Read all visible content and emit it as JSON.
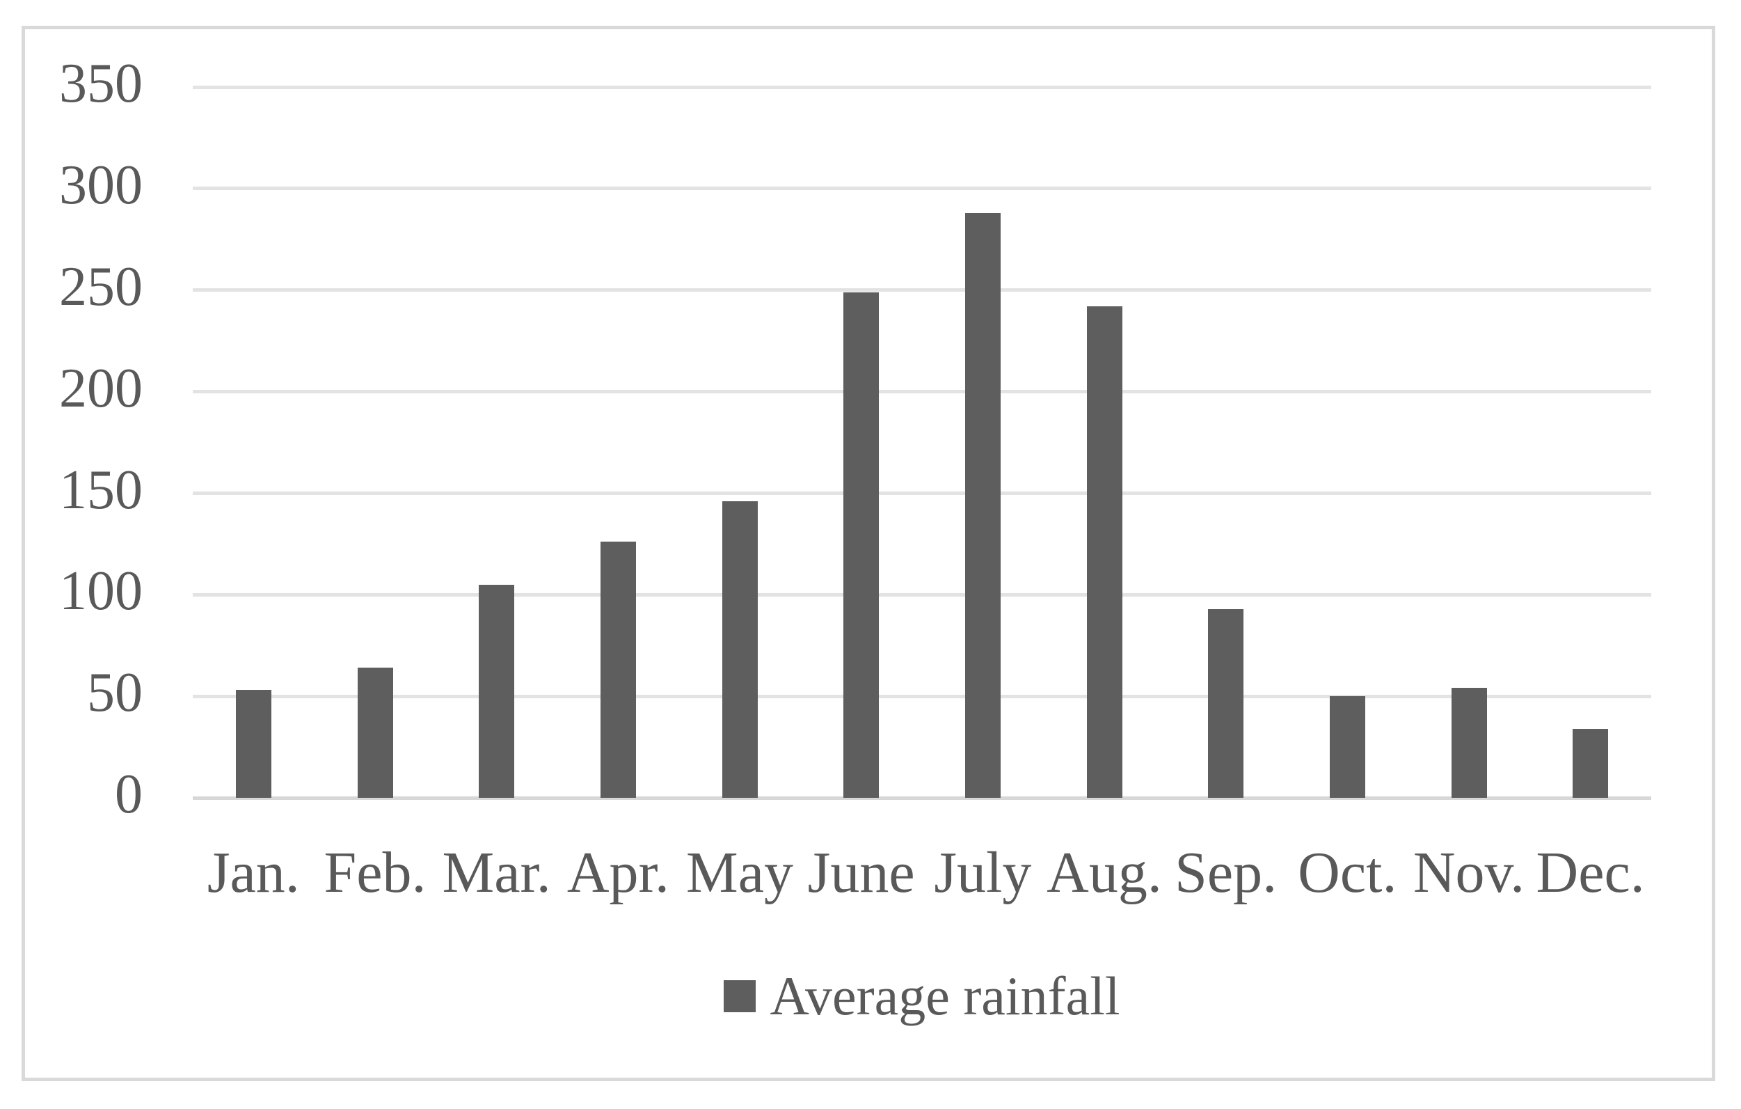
{
  "chart_data": {
    "type": "bar",
    "title": "",
    "xlabel": "",
    "ylabel": "",
    "categories": [
      "Jan.",
      "Feb.",
      "Mar.",
      "Apr.",
      "May",
      "June",
      "July",
      "Aug.",
      "Sep.",
      "Oct.",
      "Nov.",
      "Dec."
    ],
    "values": [
      53,
      64,
      105,
      126,
      146,
      249,
      288,
      242,
      93,
      50,
      54,
      34
    ],
    "series": [
      {
        "name": "Average rainfall",
        "values": [
          53,
          64,
          105,
          126,
          146,
          249,
          288,
          242,
          93,
          50,
          54,
          34
        ]
      }
    ],
    "ylim": [
      0,
      350
    ],
    "yticks": [
      0,
      50,
      100,
      150,
      200,
      250,
      300,
      350
    ],
    "grid": true,
    "legend": {
      "position": "bottom-center",
      "entries": [
        {
          "label": "Average rainfall",
          "swatch_color": "#5e5e5e"
        }
      ]
    },
    "colors": {
      "bar": "#5e5e5e",
      "gridline": "#e3e3e3",
      "zero_axis_line": "#d7d7d7",
      "frame_border": "#d9d9d9",
      "text": "#595959",
      "background": "#ffffff"
    }
  }
}
